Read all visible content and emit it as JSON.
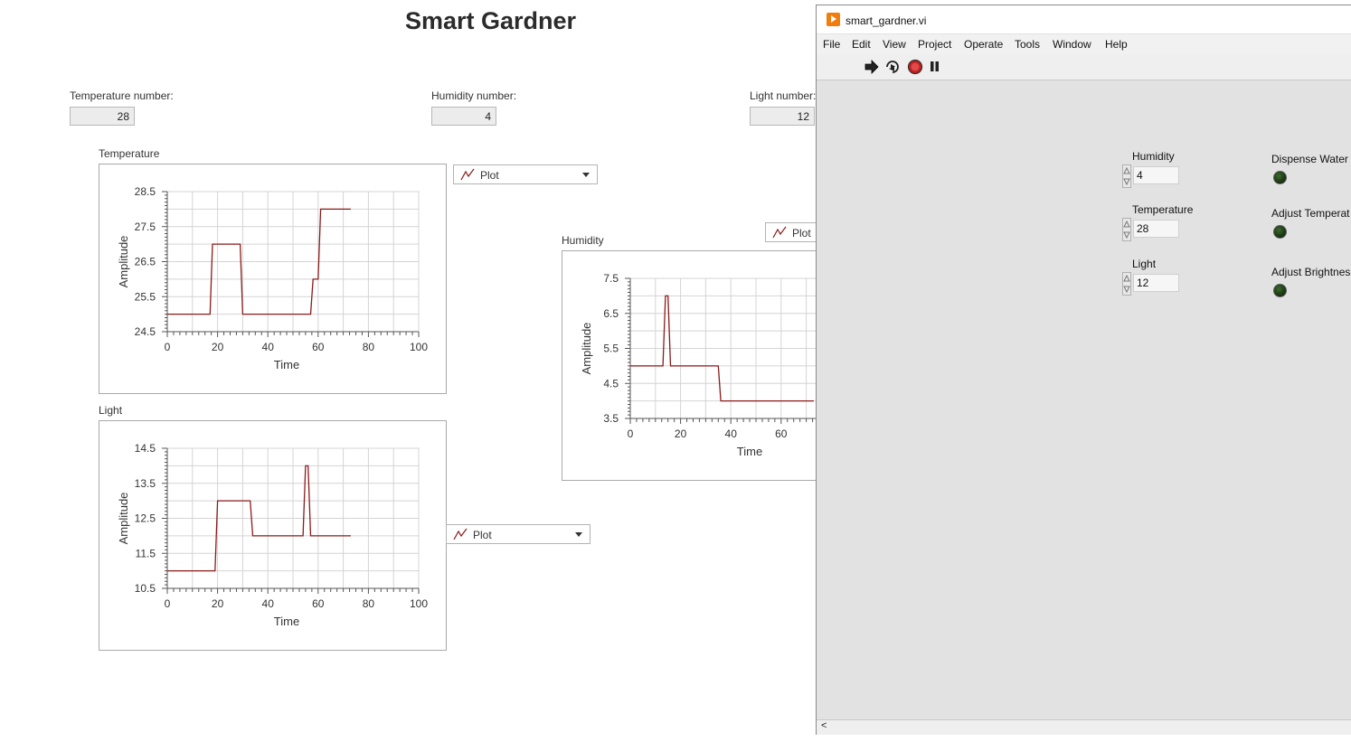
{
  "front_panel": {
    "title": "Smart Gardner",
    "indicators": [
      {
        "label": "Temperature number:",
        "value": "28"
      },
      {
        "label": "Humidity number:",
        "value": "4"
      },
      {
        "label": "Light number:",
        "value": "12"
      }
    ],
    "plot_selectors": [
      {
        "label": "Plot"
      },
      {
        "label": "Plot"
      },
      {
        "label": "Plot"
      }
    ],
    "accent_color": "#8b1a1a"
  },
  "chart_data": [
    {
      "type": "line",
      "title": "Temperature",
      "xlabel": "Time",
      "ylabel": "Amplitude",
      "xlim": [
        0,
        100
      ],
      "ylim": [
        24.5,
        28.5
      ],
      "xticks": [
        "0",
        "20",
        "40",
        "60",
        "80",
        "100"
      ],
      "yticks": [
        "24.5",
        "25.5",
        "26.5",
        "27.5",
        "28.5"
      ],
      "grid": true,
      "color": "#8b1a1a",
      "points": [
        [
          0,
          25
        ],
        [
          17,
          25
        ],
        [
          18,
          27
        ],
        [
          29,
          27
        ],
        [
          30,
          25
        ],
        [
          57,
          25
        ],
        [
          58,
          26
        ],
        [
          60,
          26
        ],
        [
          61,
          28
        ],
        [
          73,
          28
        ]
      ]
    },
    {
      "type": "line",
      "title": "Humidity",
      "xlabel": "Time",
      "ylabel": "Amplitude",
      "xlim": [
        0,
        100
      ],
      "ylim": [
        3.5,
        7.5
      ],
      "xticks": [
        "0",
        "20",
        "40",
        "60"
      ],
      "yticks": [
        "3.5",
        "4.5",
        "5.5",
        "6.5",
        "7.5"
      ],
      "grid": true,
      "color": "#8b1a1a",
      "points": [
        [
          0,
          5
        ],
        [
          13,
          5
        ],
        [
          14,
          7
        ],
        [
          15,
          7
        ],
        [
          16,
          5
        ],
        [
          35,
          5
        ],
        [
          36,
          4
        ],
        [
          73,
          4
        ]
      ]
    },
    {
      "type": "line",
      "title": "Light",
      "xlabel": "Time",
      "ylabel": "Amplitude",
      "xlim": [
        0,
        100
      ],
      "ylim": [
        10.5,
        14.5
      ],
      "xticks": [
        "0",
        "20",
        "40",
        "60",
        "80",
        "100"
      ],
      "yticks": [
        "10.5",
        "11.5",
        "12.5",
        "13.5",
        "14.5"
      ],
      "grid": true,
      "color": "#8b1a1a",
      "points": [
        [
          0,
          11
        ],
        [
          19,
          11
        ],
        [
          20,
          13
        ],
        [
          33,
          13
        ],
        [
          34,
          12
        ],
        [
          54,
          12
        ],
        [
          55,
          14
        ],
        [
          56,
          14
        ],
        [
          57,
          12
        ],
        [
          73,
          12
        ]
      ]
    }
  ],
  "labview_window": {
    "title": "smart_gardner.vi",
    "menu": [
      "File",
      "Edit",
      "View",
      "Project",
      "Operate",
      "Tools",
      "Window",
      "Help"
    ],
    "toolbar_icons": [
      "run-arrow-icon",
      "run-continuously-icon",
      "abort-icon",
      "pause-icon"
    ],
    "controls": [
      {
        "label": "Humidity",
        "value": "4"
      },
      {
        "label": "Temperature",
        "value": "28"
      },
      {
        "label": "Light",
        "value": "12"
      }
    ],
    "leds": [
      {
        "label": "Dispense Water"
      },
      {
        "label": "Adjust Temperat"
      },
      {
        "label": "Adjust Brightnes"
      }
    ],
    "scroll_left": "<"
  }
}
